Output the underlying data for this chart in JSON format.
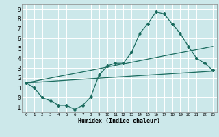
{
  "title": "",
  "xlabel": "Humidex (Indice chaleur)",
  "xlim": [
    -0.5,
    23.5
  ],
  "ylim": [
    -1.5,
    9.5
  ],
  "xticks": [
    0,
    1,
    2,
    3,
    4,
    5,
    6,
    7,
    8,
    9,
    10,
    11,
    12,
    13,
    14,
    15,
    16,
    17,
    18,
    19,
    20,
    21,
    22,
    23
  ],
  "yticks": [
    -1,
    0,
    1,
    2,
    3,
    4,
    5,
    6,
    7,
    8,
    9
  ],
  "bg_color": "#cce8ea",
  "grid_color": "#ffffff",
  "line_color": "#1a6b5e",
  "line1_x": [
    0,
    1,
    2,
    3,
    4,
    5,
    6,
    7,
    8,
    9,
    10,
    11,
    12,
    13,
    14,
    15,
    16,
    17,
    18,
    19,
    20,
    21,
    22,
    23
  ],
  "line1_y": [
    1.5,
    1.0,
    0.0,
    -0.3,
    -0.8,
    -0.8,
    -1.2,
    -0.8,
    0.1,
    2.3,
    3.2,
    3.5,
    3.5,
    4.6,
    6.5,
    7.5,
    8.7,
    8.5,
    7.5,
    6.5,
    5.2,
    4.0,
    3.5,
    2.8
  ],
  "line2_x": [
    0,
    23
  ],
  "line2_y": [
    1.5,
    2.7
  ],
  "line3_x": [
    0,
    23
  ],
  "line3_y": [
    1.5,
    5.2
  ]
}
